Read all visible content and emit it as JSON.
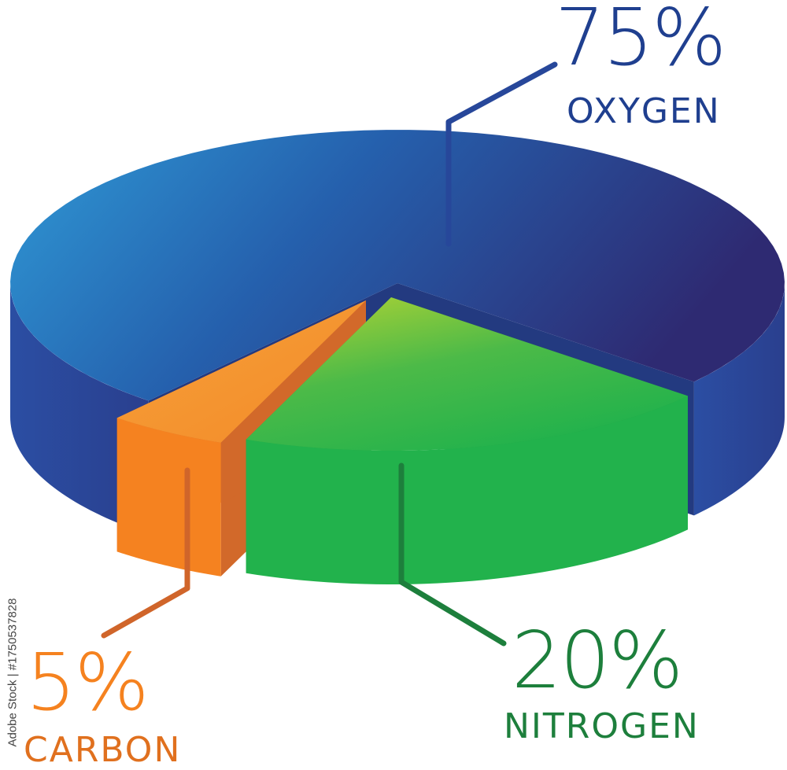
{
  "chart_data": {
    "type": "pie",
    "style": "3d-exploded",
    "slices": [
      {
        "label": "OXYGEN",
        "value": 75,
        "value_label": "75%",
        "color": "#2b56a8",
        "text_color": "#1f3f8f"
      },
      {
        "label": "NITROGEN",
        "value": 20,
        "value_label": "20%",
        "color": "#22b24c",
        "text_color": "#1d7f3c"
      },
      {
        "label": "CARBON",
        "value": 5,
        "value_label": "5%",
        "color": "#f5821f",
        "text_color": "#e8781e"
      }
    ]
  },
  "watermark": "Adobe Stock | #1750537828"
}
